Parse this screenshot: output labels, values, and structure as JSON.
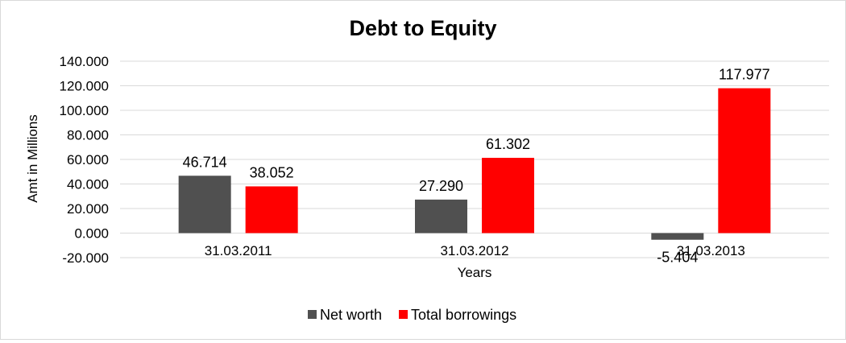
{
  "chart_data": {
    "type": "bar",
    "title": "Debt to Equity",
    "xlabel": "Years",
    "ylabel": "Amt in Millions",
    "categories": [
      "31.03.2011",
      "31.03.2012",
      "31.03.2013"
    ],
    "series": [
      {
        "name": "Net worth",
        "values": [
          46.714,
          27.29,
          -5.404
        ],
        "labels": [
          "46.714",
          "27.290",
          "-5.404"
        ],
        "color": "#505050"
      },
      {
        "name": "Total borrowings",
        "values": [
          38.052,
          61.302,
          117.977
        ],
        "labels": [
          "38.052",
          "61.302",
          "117.977"
        ],
        "color": "#ff0000"
      }
    ],
    "ylim": [
      -20,
      140
    ],
    "yticks": [
      140,
      120,
      100,
      80,
      60,
      40,
      20,
      0,
      -20
    ],
    "ytick_labels": [
      "140.000",
      "120.000",
      "100.000",
      "80.000",
      "60.000",
      "40.000",
      "20.000",
      "0.000",
      "-20.000"
    ],
    "grid": true,
    "legend_position": "bottom"
  }
}
